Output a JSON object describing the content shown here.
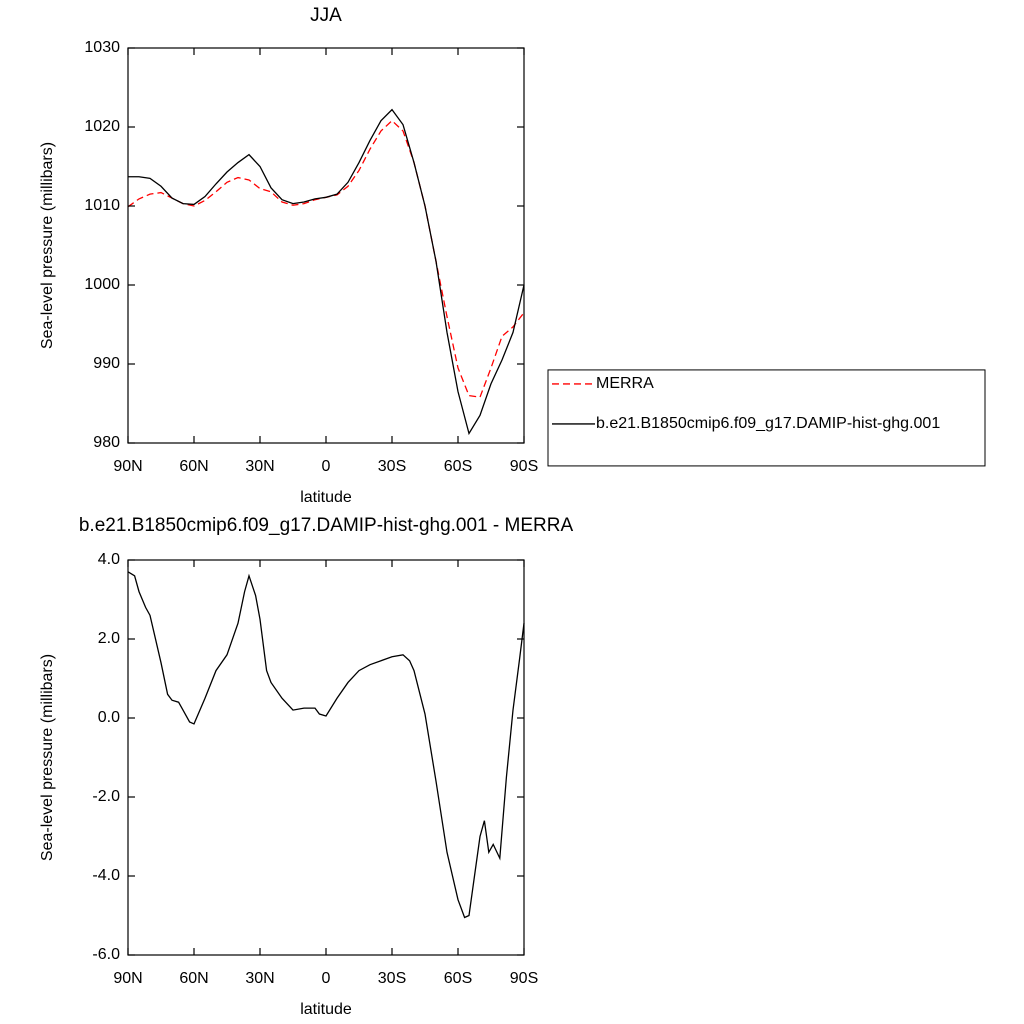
{
  "chart_data": [
    {
      "type": "line",
      "title": "JJA",
      "x_label": "latitude",
      "y_label": "Sea-level pressure (millibars)",
      "x": [
        90,
        85,
        80,
        75,
        70,
        65,
        60,
        55,
        50,
        45,
        40,
        35,
        30,
        25,
        20,
        15,
        10,
        5,
        0,
        -5,
        -10,
        -15,
        -20,
        -25,
        -30,
        -35,
        -40,
        -45,
        -50,
        -55,
        -60,
        -65,
        -70,
        -75,
        -80,
        -85,
        -90
      ],
      "series": [
        {
          "name": "MERRA",
          "color": "#ff0000",
          "style": "dashed",
          "values": [
            1009.9,
            1010.9,
            1011.5,
            1011.7,
            1011,
            1010.3,
            1010,
            1010.7,
            1011.8,
            1013,
            1013.6,
            1013.3,
            1012.2,
            1011.8,
            1010.5,
            1010.1,
            1010.3,
            1010.8,
            1011.1,
            1011.4,
            1012.5,
            1014.5,
            1017.2,
            1019.5,
            1020.8,
            1019.5,
            1015.5,
            1010,
            1003,
            996,
            989.5,
            986,
            985.8,
            989.5,
            993.5,
            994.7,
            996.5
          ]
        },
        {
          "name": "b.e21.B1850cmip6.f09_g17.DAMIP-hist-ghg.001",
          "color": "#000000",
          "style": "solid",
          "values": [
            1013.7,
            1013.7,
            1013.5,
            1012.5,
            1011,
            1010.3,
            1010.2,
            1011.2,
            1012.8,
            1014.3,
            1015.5,
            1016.5,
            1015,
            1012.3,
            1010.8,
            1010.3,
            1010.5,
            1010.9,
            1011.1,
            1011.5,
            1013,
            1015.5,
            1018.3,
            1020.8,
            1022.2,
            1020.3,
            1015.5,
            1010,
            1003,
            994,
            986.5,
            981.2,
            983.5,
            987.5,
            990.5,
            994,
            1000
          ]
        }
      ],
      "xlim": [
        90,
        -90
      ],
      "xticks": [
        {
          "value": 90,
          "label": "90N"
        },
        {
          "value": 60,
          "label": "60N"
        },
        {
          "value": 30,
          "label": "30N"
        },
        0,
        {
          "value": -30,
          "label": "30S"
        },
        {
          "value": -60,
          "label": "60S"
        },
        {
          "value": -90,
          "label": "90S"
        }
      ],
      "ylim": [
        980,
        1030
      ],
      "yticks": [
        980,
        990,
        1000,
        1010,
        1020,
        1030
      ],
      "legend": "right"
    },
    {
      "type": "line",
      "title": "b.e21.B1850cmip6.f09_g17.DAMIP-hist-ghg.001 - MERRA",
      "x_label": "latitude",
      "y_label": "Sea-level pressure (millibars)",
      "x": [
        90,
        87,
        85,
        82,
        80,
        75,
        72,
        70,
        67,
        65,
        62,
        60,
        55,
        50,
        45,
        40,
        37,
        35,
        32,
        30,
        27,
        25,
        20,
        15,
        10,
        5,
        3,
        0,
        -5,
        -10,
        -15,
        -20,
        -25,
        -30,
        -35,
        -38,
        -40,
        -45,
        -50,
        -55,
        -60,
        -63,
        -65,
        -67,
        -70,
        -72,
        -74,
        -76,
        -79,
        -82,
        -85,
        -88,
        -90
      ],
      "series": [
        {
          "name": "b.e21.B1850cmip6.f09_g17.DAMIP-hist-ghg.001 - MERRA",
          "color": "#000000",
          "style": "solid",
          "values": [
            3.7,
            3.6,
            3.2,
            2.8,
            2.6,
            1.4,
            0.6,
            0.45,
            0.4,
            0.2,
            -0.1,
            -0.15,
            0.5,
            1.2,
            1.6,
            2.4,
            3.2,
            3.6,
            3.1,
            2.5,
            1.2,
            0.9,
            0.5,
            0.2,
            0.25,
            0.25,
            0.1,
            0.05,
            0.5,
            0.9,
            1.2,
            1.35,
            1.45,
            1.55,
            1.6,
            1.45,
            1.2,
            0.1,
            -1.6,
            -3.4,
            -4.6,
            -5.05,
            -5.0,
            -4.2,
            -3.0,
            -2.6,
            -3.4,
            -3.2,
            -3.55,
            -1.5,
            0.2,
            1.5,
            2.4
          ]
        }
      ],
      "xlim": [
        90,
        -90
      ],
      "xticks": [
        {
          "value": 90,
          "label": "90N"
        },
        {
          "value": 60,
          "label": "60N"
        },
        {
          "value": 30,
          "label": "30N"
        },
        0,
        {
          "value": -30,
          "label": "30S"
        },
        {
          "value": -60,
          "label": "60S"
        },
        {
          "value": -90,
          "label": "90S"
        }
      ],
      "ylim": [
        -6,
        4
      ],
      "yticks": [
        {
          "value": -6,
          "label": "-6.0"
        },
        {
          "value": -4,
          "label": "-4.0"
        },
        {
          "value": -2,
          "label": "-2.0"
        },
        {
          "value": 0,
          "label": "0.0"
        },
        {
          "value": 2,
          "label": "2.0"
        },
        {
          "value": 4,
          "label": "4.0"
        }
      ]
    }
  ]
}
